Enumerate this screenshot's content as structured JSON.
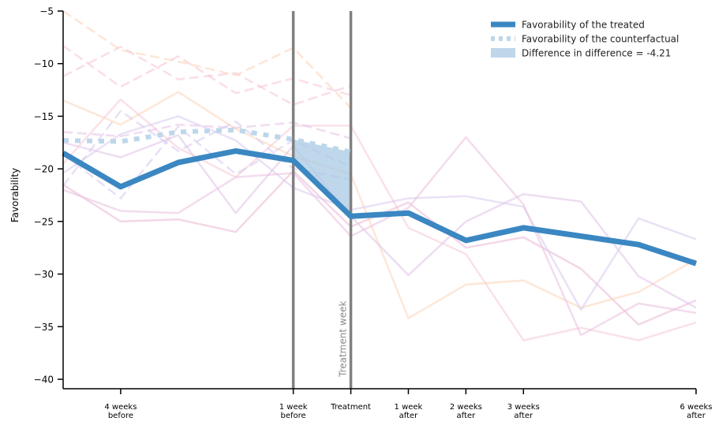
{
  "chart_data": {
    "type": "line",
    "xlabel": "",
    "ylabel": "Favorability",
    "ylim": [
      -40,
      -5
    ],
    "xlim": [
      -5,
      6
    ],
    "yticks": [
      -5,
      -10,
      -15,
      -20,
      -25,
      -30,
      -35,
      -40
    ],
    "xticks": [
      {
        "x": -4,
        "label": [
          "4 weeks",
          "before"
        ]
      },
      {
        "x": -1,
        "label": [
          "1 week",
          "before"
        ]
      },
      {
        "x": 0,
        "label": [
          "Treatment"
        ]
      },
      {
        "x": 1,
        "label": [
          "1 week",
          "after"
        ]
      },
      {
        "x": 2,
        "label": [
          "2 weeks",
          "after"
        ]
      },
      {
        "x": 3,
        "label": [
          "3 weeks",
          "after"
        ]
      },
      {
        "x": 6,
        "label": [
          "6 weeks",
          "after"
        ]
      }
    ],
    "vlines": [
      -1,
      0
    ],
    "annotation": {
      "text": "Treatment week",
      "x": 0
    },
    "legend_position": "top-right",
    "series": [
      {
        "name": "Favorability of the treated",
        "color": "#3a87c2",
        "x": [
          -5,
          -4,
          -3,
          -2,
          -1,
          0,
          1,
          2,
          3,
          4,
          5,
          6
        ],
        "values": [
          -18.5,
          -21.7,
          -19.4,
          -18.3,
          -19.2,
          -24.5,
          -24.2,
          -26.8,
          -25.6,
          -26.4,
          -27.2,
          -29.0
        ]
      },
      {
        "name": "Favorability of the counterfactual",
        "color": "#bdd7ea",
        "x": [
          -5,
          -4,
          -3,
          -2,
          -1,
          0
        ],
        "values": [
          -17.3,
          -17.4,
          -16.5,
          -16.3,
          -17.2,
          -18.4
        ]
      }
    ],
    "difference": {
      "name": "Difference in difference = -4.21",
      "value": -4.21,
      "color": "#a9c9e4"
    },
    "background_series": [
      {
        "color": "#e9b7d4",
        "style": "solid",
        "x": [
          -5,
          -4,
          -3,
          -2,
          -1,
          0,
          1,
          2,
          3,
          4,
          5,
          6
        ],
        "values": [
          -21.5,
          -25.0,
          -24.8,
          -26.0,
          -20.2,
          -25.5,
          -23.2,
          -27.5,
          -26.5,
          -29.5,
          -34.8,
          -32.5
        ]
      },
      {
        "color": "#fbd3b7",
        "style": "solid",
        "x": [
          -5,
          -4,
          -3,
          -2,
          -1,
          0,
          1,
          2,
          3,
          4,
          5,
          6
        ],
        "values": [
          -13.5,
          -15.8,
          -12.7,
          -16.2,
          -18.8,
          -20.5,
          -34.2,
          -31.0,
          -30.6,
          -33.2,
          -31.7,
          -28.6
        ]
      },
      {
        "color": "#e0c1e8",
        "style": "solid",
        "x": [
          -5,
          -4,
          -3,
          -2,
          -1,
          0,
          1,
          2,
          3,
          4,
          5,
          6
        ],
        "values": [
          -17.5,
          -18.9,
          -16.8,
          -24.2,
          -17.8,
          -24.5,
          -30.1,
          -25.0,
          -22.4,
          -23.1,
          -30.2,
          -33.2
        ]
      },
      {
        "color": "#f6c8d6",
        "style": "solid",
        "x": [
          -5,
          -4,
          -3,
          -2,
          -1,
          0,
          1,
          2,
          3,
          4,
          5,
          6
        ],
        "values": [
          -19.5,
          -13.4,
          -18.0,
          -20.8,
          -15.9,
          -15.9,
          -25.6,
          -28.1,
          -36.3,
          -35.1,
          -36.3,
          -34.6
        ]
      },
      {
        "color": "#d9c8ee",
        "style": "solid",
        "x": [
          -5,
          -4,
          -3,
          -2,
          -1,
          0,
          1,
          2,
          3,
          4,
          5,
          6
        ],
        "values": [
          -20.4,
          -16.7,
          -15.0,
          -17.3,
          -21.8,
          -23.9,
          -22.8,
          -22.6,
          -23.6,
          -33.4,
          -24.7,
          -26.7
        ]
      },
      {
        "color": "#eac0df",
        "style": "solid",
        "x": [
          -5,
          -4,
          -3,
          -2,
          -1,
          0,
          1,
          2,
          3,
          4,
          5,
          6
        ],
        "values": [
          -22.0,
          -24.0,
          -24.2,
          -20.8,
          -20.4,
          -26.4,
          -23.7,
          -17.0,
          -23.4,
          -35.8,
          -32.8,
          -33.7
        ]
      },
      {
        "color": "#fcd0b4",
        "style": "dashed",
        "x": [
          -5,
          -4,
          -3,
          -2,
          -1,
          0
        ],
        "values": [
          -5.0,
          -8.7,
          -9.8,
          -11.1,
          -8.5,
          -14.2
        ]
      },
      {
        "color": "#f6c3d2",
        "style": "dashed",
        "x": [
          -5,
          -4,
          -3,
          -2,
          -1,
          0
        ],
        "values": [
          -11.2,
          -8.4,
          -11.5,
          -10.9,
          -13.9,
          -12.1
        ]
      },
      {
        "color": "#f6c3d2",
        "style": "dashed",
        "x": [
          -5,
          -4,
          -3,
          -2,
          -1,
          0
        ],
        "values": [
          -8.3,
          -12.2,
          -9.3,
          -12.8,
          -11.4,
          -13.0
        ]
      },
      {
        "color": "#e4bfe6",
        "style": "dashed",
        "x": [
          -5,
          -4,
          -3,
          -2,
          -1,
          0
        ],
        "values": [
          -16.5,
          -16.9,
          -15.8,
          -16.1,
          -15.6,
          -17.1
        ]
      },
      {
        "color": "#d3c6ef",
        "style": "dashed",
        "x": [
          -5,
          -4,
          -3,
          -2,
          -1,
          0
        ],
        "values": [
          -21.6,
          -14.5,
          -18.3,
          -15.5,
          -20.0,
          -21.0
        ]
      },
      {
        "color": "#d3c6ef",
        "style": "dashed",
        "x": [
          -5,
          -4,
          -3,
          -2,
          -1,
          0
        ],
        "values": [
          -18.6,
          -22.8,
          -16.0,
          -20.5,
          -17.3,
          -19.8
        ]
      }
    ]
  }
}
